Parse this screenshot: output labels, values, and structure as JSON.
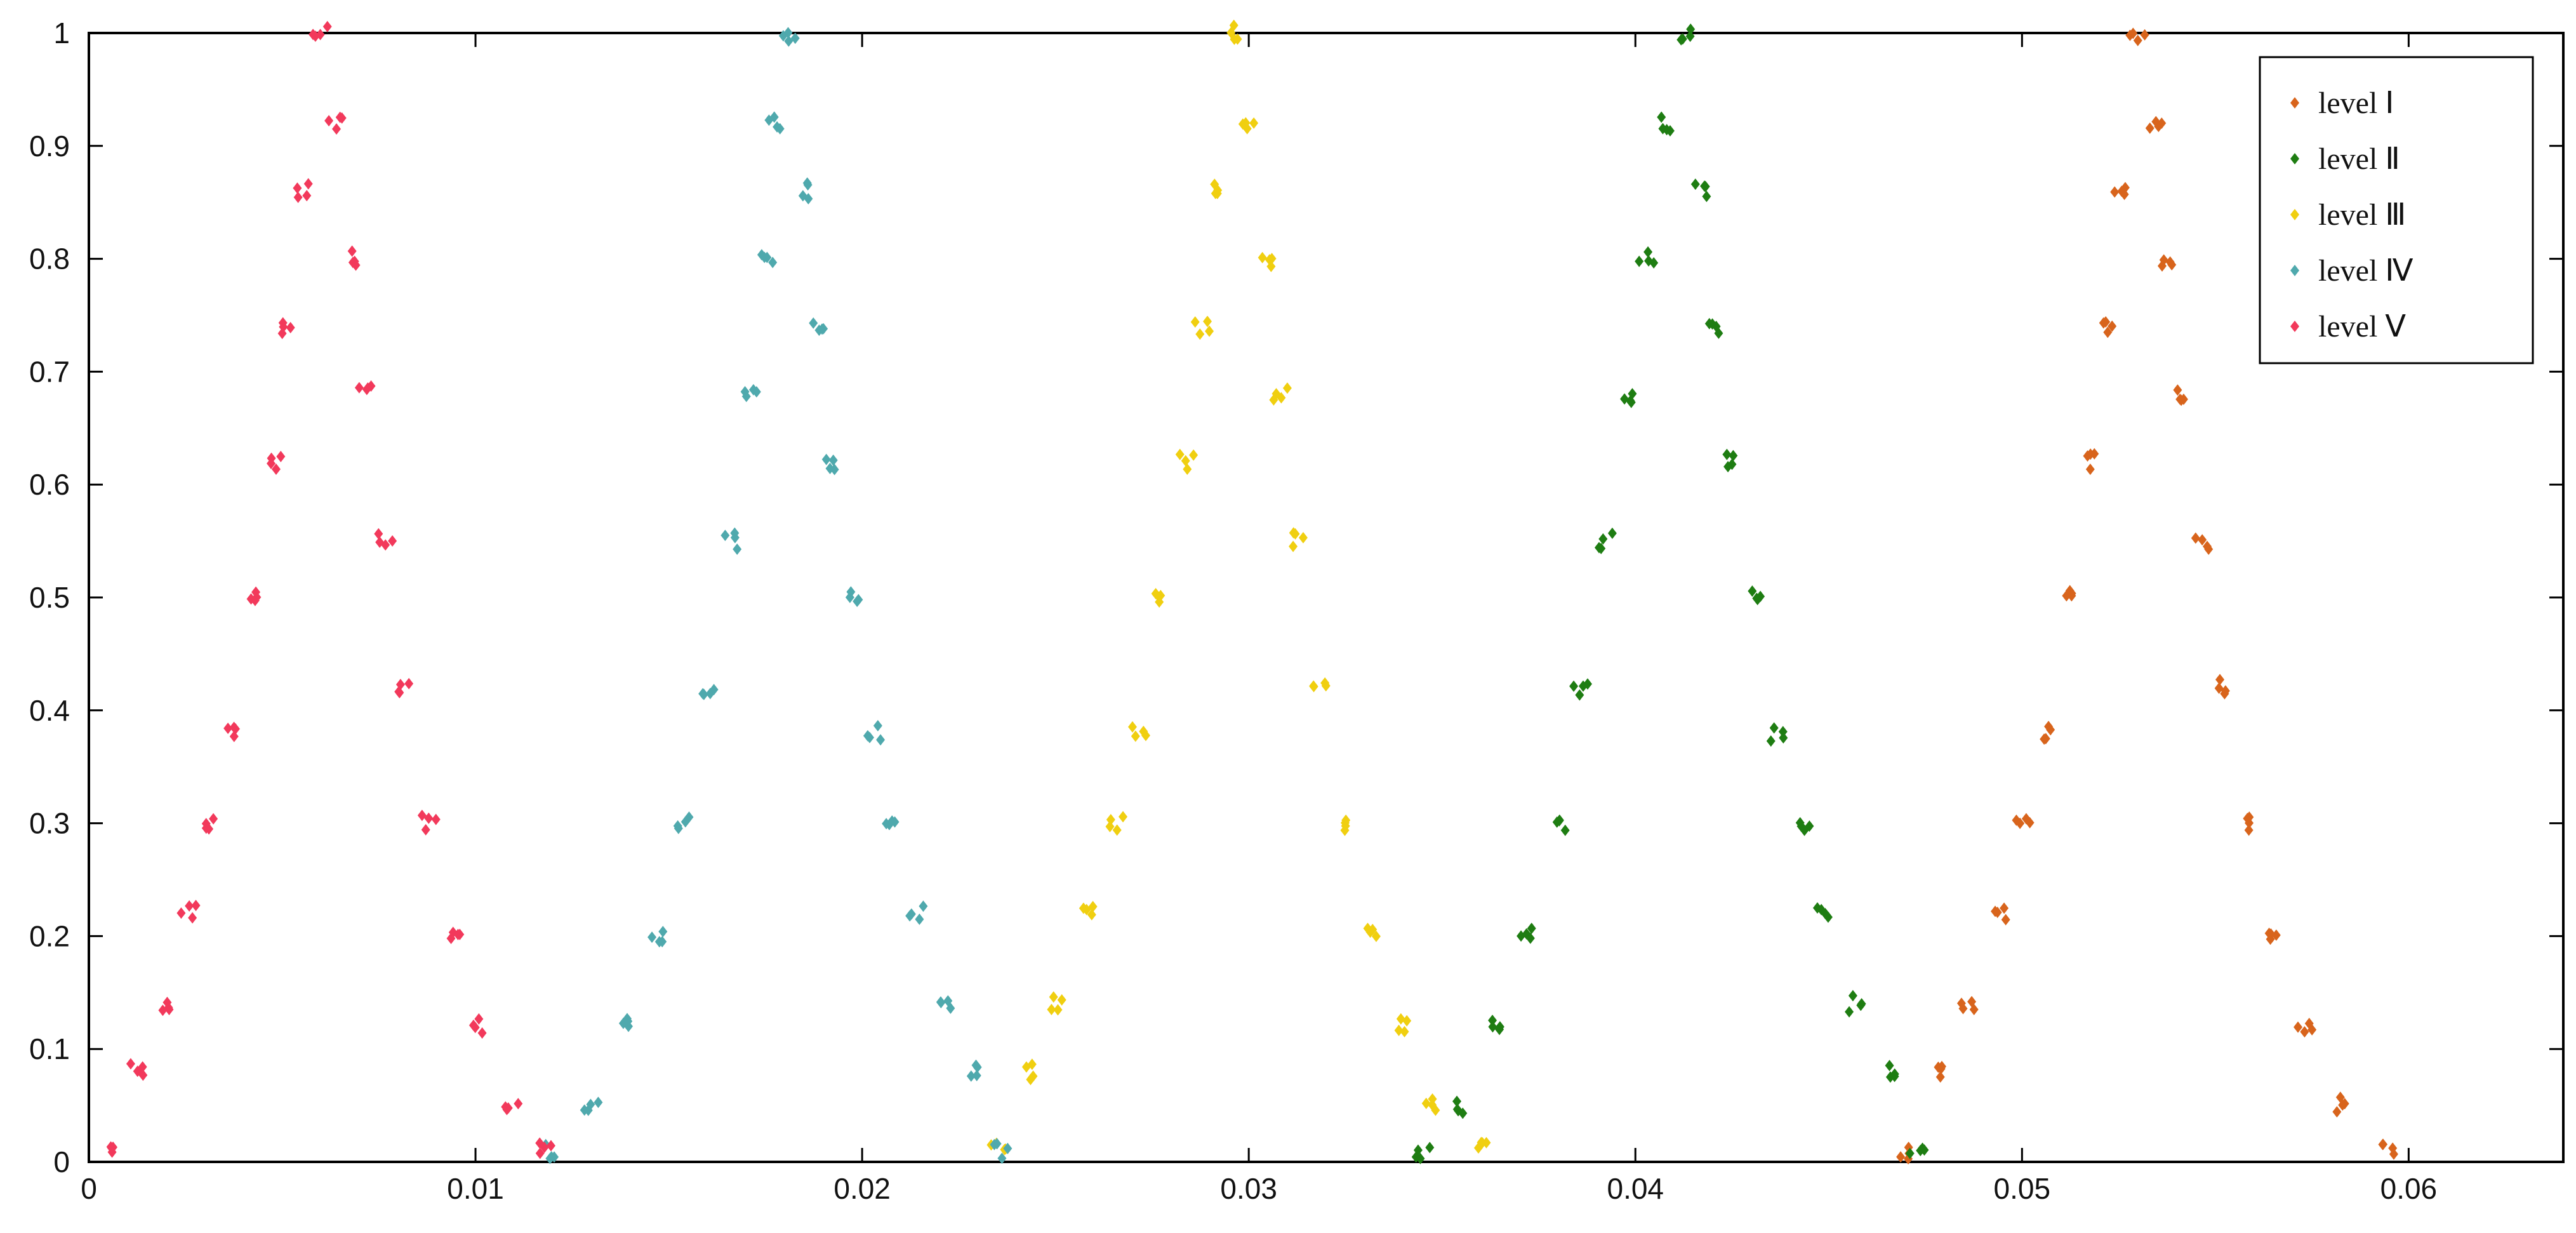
{
  "chart_data": {
    "type": "scatter",
    "title": "",
    "xlabel": "",
    "ylabel": "",
    "xlim": [
      0,
      0.064
    ],
    "ylim": [
      0,
      1
    ],
    "grid": false,
    "legend_position": "top-right",
    "x_ticks": [
      {
        "value": 0,
        "label": "0"
      },
      {
        "value": 0.01,
        "label": "0.01"
      },
      {
        "value": 0.02,
        "label": "0.02"
      },
      {
        "value": 0.03,
        "label": "0.03"
      },
      {
        "value": 0.04,
        "label": "0.04"
      },
      {
        "value": 0.05,
        "label": "0.05"
      },
      {
        "value": 0.06,
        "label": "0.06"
      }
    ],
    "y_ticks": [
      {
        "value": 0,
        "label": "0"
      },
      {
        "value": 0.1,
        "label": "0.1"
      },
      {
        "value": 0.2,
        "label": "0.2"
      },
      {
        "value": 0.3,
        "label": "0.3"
      },
      {
        "value": 0.4,
        "label": "0.4"
      },
      {
        "value": 0.5,
        "label": "0.5"
      },
      {
        "value": 0.6,
        "label": "0.6"
      },
      {
        "value": 0.7,
        "label": "0.7"
      },
      {
        "value": 0.8,
        "label": "0.8"
      },
      {
        "value": 0.9,
        "label": "0.9"
      },
      {
        "value": 1,
        "label": "1"
      }
    ],
    "series": [
      {
        "name": "level Ⅰ",
        "color": "#d8641c",
        "points": [
          [
            0.047,
            0.01
          ],
          [
            0.0478,
            0.08
          ],
          [
            0.0486,
            0.14
          ],
          [
            0.0494,
            0.22
          ],
          [
            0.05,
            0.3
          ],
          [
            0.0506,
            0.38
          ],
          [
            0.0512,
            0.5
          ],
          [
            0.0518,
            0.62
          ],
          [
            0.0522,
            0.74
          ],
          [
            0.0526,
            0.86
          ],
          [
            0.053,
            1.0
          ],
          [
            0.0534,
            0.92
          ],
          [
            0.0538,
            0.8
          ],
          [
            0.0542,
            0.68
          ],
          [
            0.0547,
            0.55
          ],
          [
            0.0552,
            0.42
          ],
          [
            0.0558,
            0.3
          ],
          [
            0.0565,
            0.2
          ],
          [
            0.0573,
            0.12
          ],
          [
            0.0583,
            0.05
          ],
          [
            0.0595,
            0.01
          ]
        ]
      },
      {
        "name": "level Ⅱ",
        "color": "#1e7d12",
        "points": [
          [
            0.0345,
            0.01
          ],
          [
            0.0355,
            0.05
          ],
          [
            0.0364,
            0.12
          ],
          [
            0.0372,
            0.2
          ],
          [
            0.038,
            0.3
          ],
          [
            0.0386,
            0.42
          ],
          [
            0.0392,
            0.55
          ],
          [
            0.0398,
            0.68
          ],
          [
            0.0403,
            0.8
          ],
          [
            0.0408,
            0.92
          ],
          [
            0.0413,
            1.0
          ],
          [
            0.0417,
            0.86
          ],
          [
            0.0421,
            0.74
          ],
          [
            0.0425,
            0.62
          ],
          [
            0.0431,
            0.5
          ],
          [
            0.0437,
            0.38
          ],
          [
            0.0443,
            0.3
          ],
          [
            0.0449,
            0.22
          ],
          [
            0.0457,
            0.14
          ],
          [
            0.0465,
            0.08
          ],
          [
            0.0473,
            0.01
          ]
        ]
      },
      {
        "name": "level Ⅲ",
        "color": "#f0cf10",
        "points": [
          [
            0.0235,
            0.01
          ],
          [
            0.0243,
            0.08
          ],
          [
            0.0251,
            0.14
          ],
          [
            0.0259,
            0.22
          ],
          [
            0.0266,
            0.3
          ],
          [
            0.0272,
            0.38
          ],
          [
            0.0278,
            0.5
          ],
          [
            0.0284,
            0.62
          ],
          [
            0.0288,
            0.74
          ],
          [
            0.0292,
            0.86
          ],
          [
            0.0296,
            1.0
          ],
          [
            0.03,
            0.92
          ],
          [
            0.0304,
            0.8
          ],
          [
            0.0308,
            0.68
          ],
          [
            0.0313,
            0.55
          ],
          [
            0.0318,
            0.42
          ],
          [
            0.0324,
            0.3
          ],
          [
            0.0331,
            0.2
          ],
          [
            0.0339,
            0.12
          ],
          [
            0.0348,
            0.05
          ],
          [
            0.036,
            0.01
          ]
        ]
      },
      {
        "name": "level Ⅳ",
        "color": "#4fa9ad",
        "points": [
          [
            0.012,
            0.01
          ],
          [
            0.013,
            0.05
          ],
          [
            0.0139,
            0.12
          ],
          [
            0.0147,
            0.2
          ],
          [
            0.0154,
            0.3
          ],
          [
            0.016,
            0.42
          ],
          [
            0.0166,
            0.55
          ],
          [
            0.0171,
            0.68
          ],
          [
            0.0175,
            0.8
          ],
          [
            0.0178,
            0.92
          ],
          [
            0.0181,
            1.0
          ],
          [
            0.0184,
            0.86
          ],
          [
            0.0188,
            0.74
          ],
          [
            0.0192,
            0.62
          ],
          [
            0.0197,
            0.5
          ],
          [
            0.0203,
            0.38
          ],
          [
            0.0208,
            0.3
          ],
          [
            0.0214,
            0.22
          ],
          [
            0.0221,
            0.14
          ],
          [
            0.0228,
            0.08
          ],
          [
            0.0236,
            0.01
          ]
        ]
      },
      {
        "name": "level Ⅴ",
        "color": "#f2395b",
        "points": [
          [
            0.0005,
            0.01
          ],
          [
            0.0012,
            0.08
          ],
          [
            0.0019,
            0.14
          ],
          [
            0.0026,
            0.22
          ],
          [
            0.0032,
            0.3
          ],
          [
            0.0038,
            0.38
          ],
          [
            0.0043,
            0.5
          ],
          [
            0.0048,
            0.62
          ],
          [
            0.0052,
            0.74
          ],
          [
            0.0056,
            0.86
          ],
          [
            0.006,
            1.0
          ],
          [
            0.0064,
            0.92
          ],
          [
            0.0068,
            0.8
          ],
          [
            0.0072,
            0.68
          ],
          [
            0.0077,
            0.55
          ],
          [
            0.0082,
            0.42
          ],
          [
            0.0088,
            0.3
          ],
          [
            0.0094,
            0.2
          ],
          [
            0.0101,
            0.12
          ],
          [
            0.0109,
            0.05
          ],
          [
            0.0118,
            0.01
          ]
        ]
      }
    ]
  }
}
